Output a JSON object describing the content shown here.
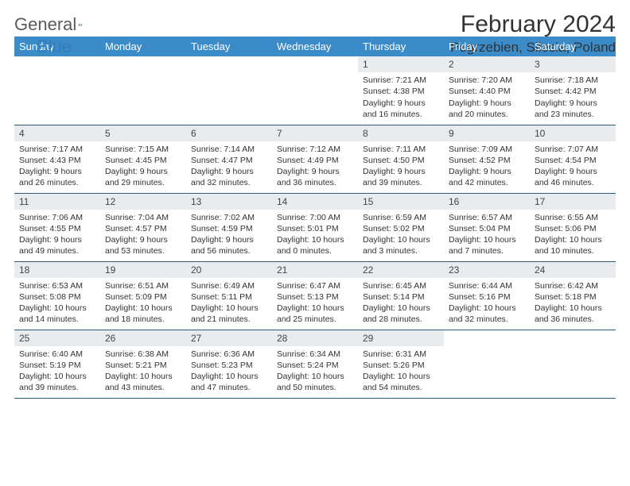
{
  "brand": {
    "part1": "General",
    "part2": "Blue"
  },
  "title": "February 2024",
  "location": "Pogrzebien, Silesia, Poland",
  "colors": {
    "header_bg": "#3b8bc9",
    "daynum_bg": "#e9ecef",
    "rule": "#2f5a7a",
    "brand_blue": "#2f7dc0",
    "text": "#333333",
    "page_bg": "#ffffff"
  },
  "day_labels": [
    "Sunday",
    "Monday",
    "Tuesday",
    "Wednesday",
    "Thursday",
    "Friday",
    "Saturday"
  ],
  "weeks": [
    [
      null,
      null,
      null,
      null,
      {
        "n": "1",
        "sr": "7:21 AM",
        "ss": "4:38 PM",
        "dl": "9 hours and 16 minutes."
      },
      {
        "n": "2",
        "sr": "7:20 AM",
        "ss": "4:40 PM",
        "dl": "9 hours and 20 minutes."
      },
      {
        "n": "3",
        "sr": "7:18 AM",
        "ss": "4:42 PM",
        "dl": "9 hours and 23 minutes."
      }
    ],
    [
      {
        "n": "4",
        "sr": "7:17 AM",
        "ss": "4:43 PM",
        "dl": "9 hours and 26 minutes."
      },
      {
        "n": "5",
        "sr": "7:15 AM",
        "ss": "4:45 PM",
        "dl": "9 hours and 29 minutes."
      },
      {
        "n": "6",
        "sr": "7:14 AM",
        "ss": "4:47 PM",
        "dl": "9 hours and 32 minutes."
      },
      {
        "n": "7",
        "sr": "7:12 AM",
        "ss": "4:49 PM",
        "dl": "9 hours and 36 minutes."
      },
      {
        "n": "8",
        "sr": "7:11 AM",
        "ss": "4:50 PM",
        "dl": "9 hours and 39 minutes."
      },
      {
        "n": "9",
        "sr": "7:09 AM",
        "ss": "4:52 PM",
        "dl": "9 hours and 42 minutes."
      },
      {
        "n": "10",
        "sr": "7:07 AM",
        "ss": "4:54 PM",
        "dl": "9 hours and 46 minutes."
      }
    ],
    [
      {
        "n": "11",
        "sr": "7:06 AM",
        "ss": "4:55 PM",
        "dl": "9 hours and 49 minutes."
      },
      {
        "n": "12",
        "sr": "7:04 AM",
        "ss": "4:57 PM",
        "dl": "9 hours and 53 minutes."
      },
      {
        "n": "13",
        "sr": "7:02 AM",
        "ss": "4:59 PM",
        "dl": "9 hours and 56 minutes."
      },
      {
        "n": "14",
        "sr": "7:00 AM",
        "ss": "5:01 PM",
        "dl": "10 hours and 0 minutes."
      },
      {
        "n": "15",
        "sr": "6:59 AM",
        "ss": "5:02 PM",
        "dl": "10 hours and 3 minutes."
      },
      {
        "n": "16",
        "sr": "6:57 AM",
        "ss": "5:04 PM",
        "dl": "10 hours and 7 minutes."
      },
      {
        "n": "17",
        "sr": "6:55 AM",
        "ss": "5:06 PM",
        "dl": "10 hours and 10 minutes."
      }
    ],
    [
      {
        "n": "18",
        "sr": "6:53 AM",
        "ss": "5:08 PM",
        "dl": "10 hours and 14 minutes."
      },
      {
        "n": "19",
        "sr": "6:51 AM",
        "ss": "5:09 PM",
        "dl": "10 hours and 18 minutes."
      },
      {
        "n": "20",
        "sr": "6:49 AM",
        "ss": "5:11 PM",
        "dl": "10 hours and 21 minutes."
      },
      {
        "n": "21",
        "sr": "6:47 AM",
        "ss": "5:13 PM",
        "dl": "10 hours and 25 minutes."
      },
      {
        "n": "22",
        "sr": "6:45 AM",
        "ss": "5:14 PM",
        "dl": "10 hours and 28 minutes."
      },
      {
        "n": "23",
        "sr": "6:44 AM",
        "ss": "5:16 PM",
        "dl": "10 hours and 32 minutes."
      },
      {
        "n": "24",
        "sr": "6:42 AM",
        "ss": "5:18 PM",
        "dl": "10 hours and 36 minutes."
      }
    ],
    [
      {
        "n": "25",
        "sr": "6:40 AM",
        "ss": "5:19 PM",
        "dl": "10 hours and 39 minutes."
      },
      {
        "n": "26",
        "sr": "6:38 AM",
        "ss": "5:21 PM",
        "dl": "10 hours and 43 minutes."
      },
      {
        "n": "27",
        "sr": "6:36 AM",
        "ss": "5:23 PM",
        "dl": "10 hours and 47 minutes."
      },
      {
        "n": "28",
        "sr": "6:34 AM",
        "ss": "5:24 PM",
        "dl": "10 hours and 50 minutes."
      },
      {
        "n": "29",
        "sr": "6:31 AM",
        "ss": "5:26 PM",
        "dl": "10 hours and 54 minutes."
      },
      null,
      null
    ]
  ],
  "labels": {
    "sunrise": "Sunrise:",
    "sunset": "Sunset:",
    "daylight": "Daylight:"
  }
}
